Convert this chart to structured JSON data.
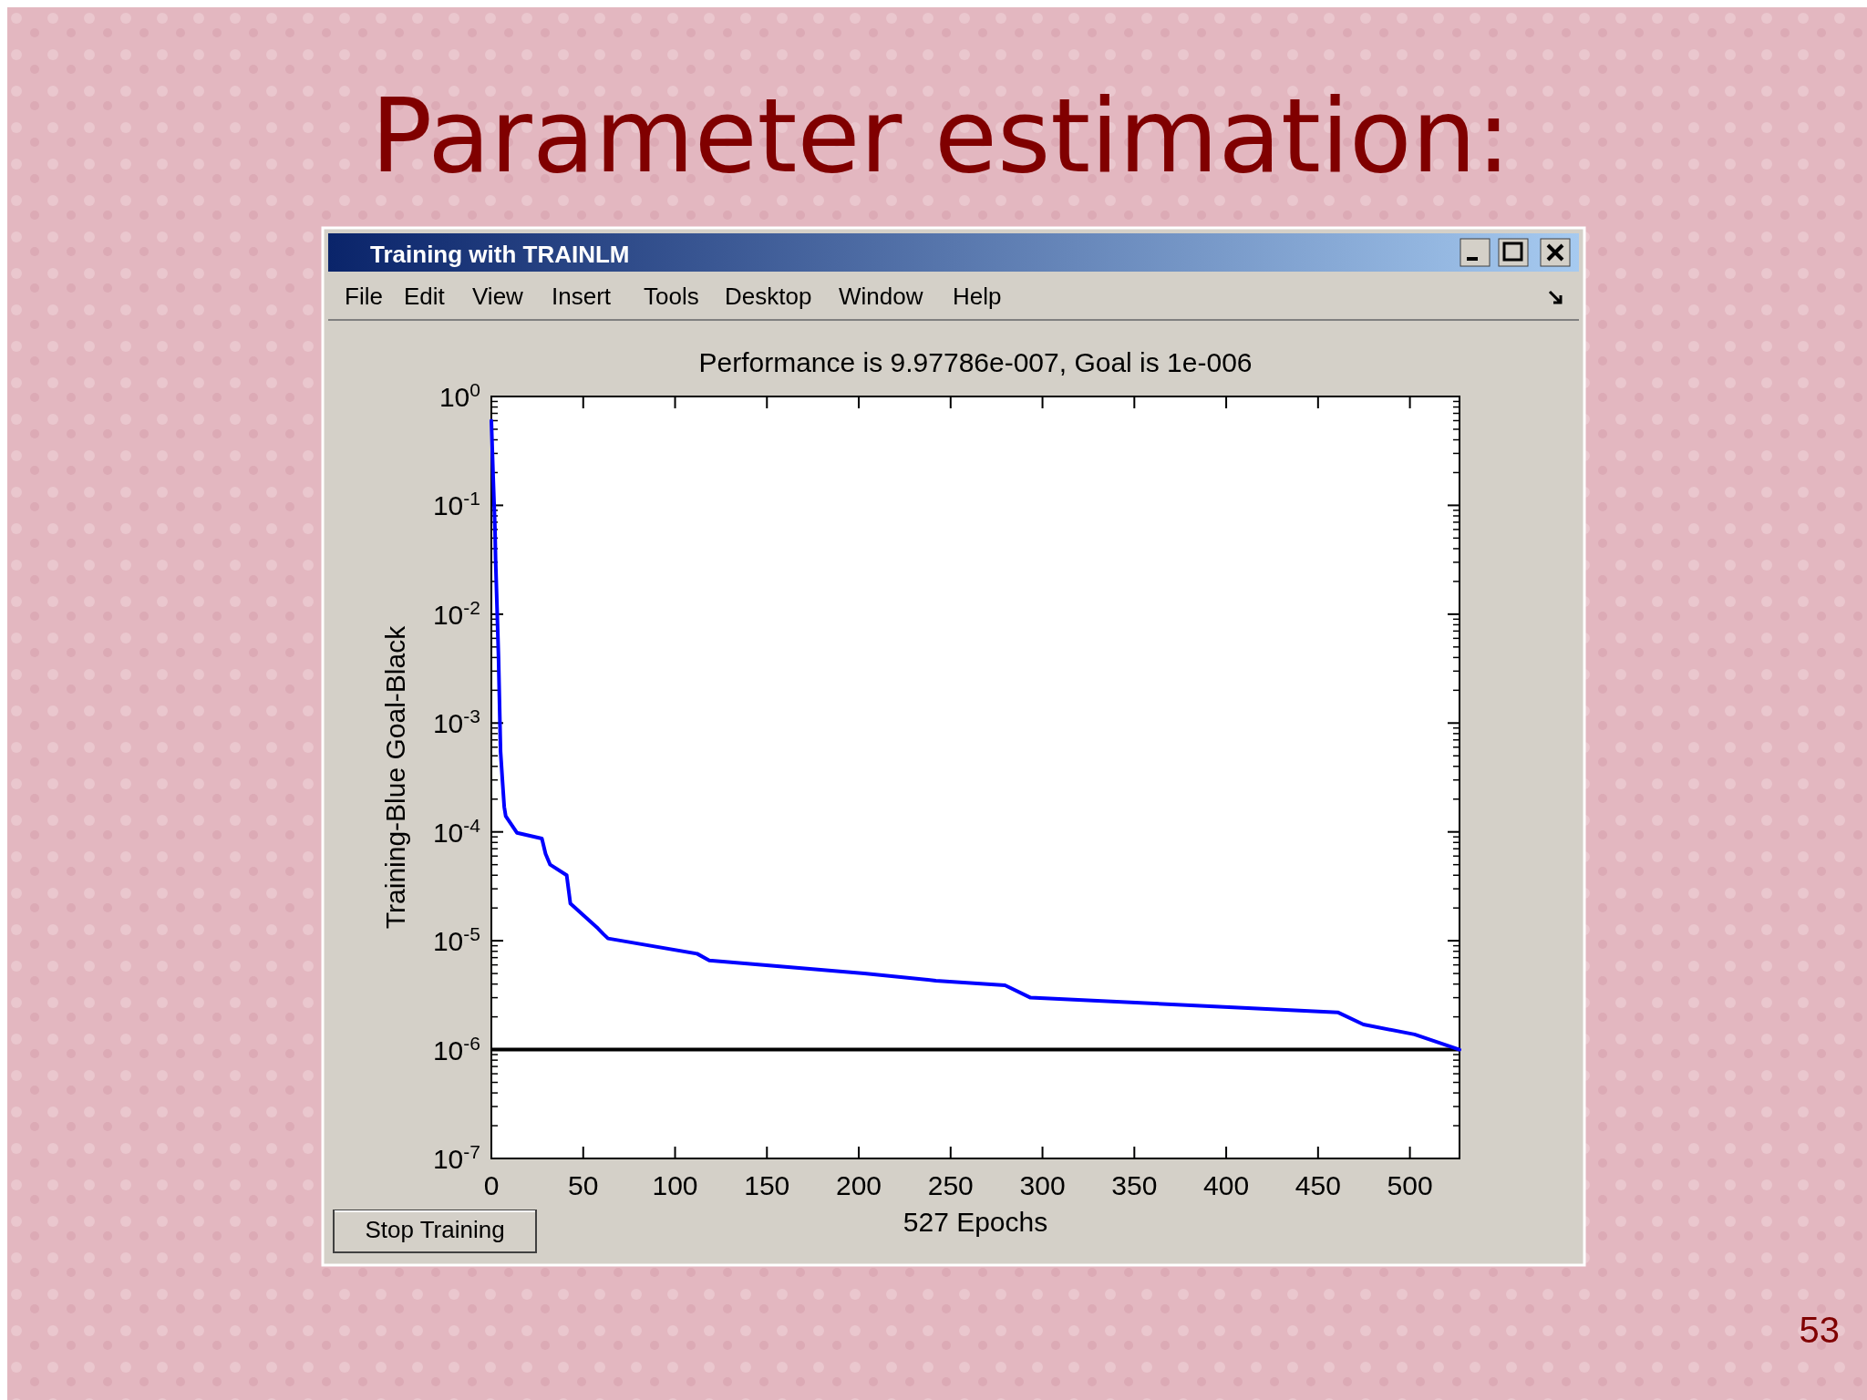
{
  "chart_data": {
    "type": "line",
    "title": "Parameter estimation:",
    "subtitle": "Performance is 9.97786e-007, Goal is 1e-006",
    "xlabel": "527 Epochs",
    "ylabel": "Training-Blue  Goal-Black",
    "annotations": [
      "Training with TRAINLM",
      "File",
      "Edit",
      "View",
      "Insert",
      "Tools",
      "Desktop",
      "Window",
      "Help",
      "Stop Training",
      "53"
    ],
    "log": "y",
    "grid": false,
    "line_style": "solid",
    "marker": "none",
    "xlim": [
      0,
      527
    ],
    "xticks": [
      0,
      50,
      100,
      150,
      200,
      250,
      300,
      350,
      400,
      450,
      500
    ],
    "ylim": [
      1e-07,
      1
    ],
    "yticks": [
      {
        "value": 1,
        "label": "10$^{0}$"
      },
      {
        "value": 0.1,
        "label": "10$^{-1}$"
      },
      {
        "value": 0.01,
        "label": "10$^{-2}$"
      },
      {
        "value": 0.001,
        "label": "10$^{-3}$"
      },
      {
        "value": 0.0001,
        "label": "10$^{-4}$"
      },
      {
        "value": 1e-05,
        "label": "10$^{-5}$"
      },
      {
        "value": 1e-06,
        "label": "10$^{-6}$"
      },
      {
        "value": 1e-07,
        "label": "10$^{-7}$"
      }
    ],
    "ref_lines": [
      {
        "axis": "y",
        "value": 1e-06,
        "color": "#000000"
      }
    ],
    "series": [
      {
        "color": "#0000ff",
        "x": [
          0,
          1,
          2,
          2.3,
          3.9,
          5,
          6,
          7,
          7.8,
          14,
          27.5,
          29.5,
          32,
          41,
          43,
          58,
          61,
          63.5,
          112,
          118.6,
          203,
          242,
          279.6,
          293.5,
          460.7,
          474.7,
          502.5,
          527
        ],
        "values": [
          0.6,
          0.18,
          0.058,
          0.032,
          0.004,
          0.00055,
          0.0003,
          0.00017,
          0.00014,
          9.8e-05,
          8.7e-05,
          6.3e-05,
          5e-05,
          4e-05,
          2.2e-05,
          1.3e-05,
          1.15e-05,
          1.05e-05,
          7.6e-06,
          6.6e-06,
          5e-06,
          4.3e-06,
          3.9e-06,
          3e-06,
          2.2e-06,
          1.7e-06,
          1.38e-06,
          9.98e-07
        ]
      }
    ]
  }
}
